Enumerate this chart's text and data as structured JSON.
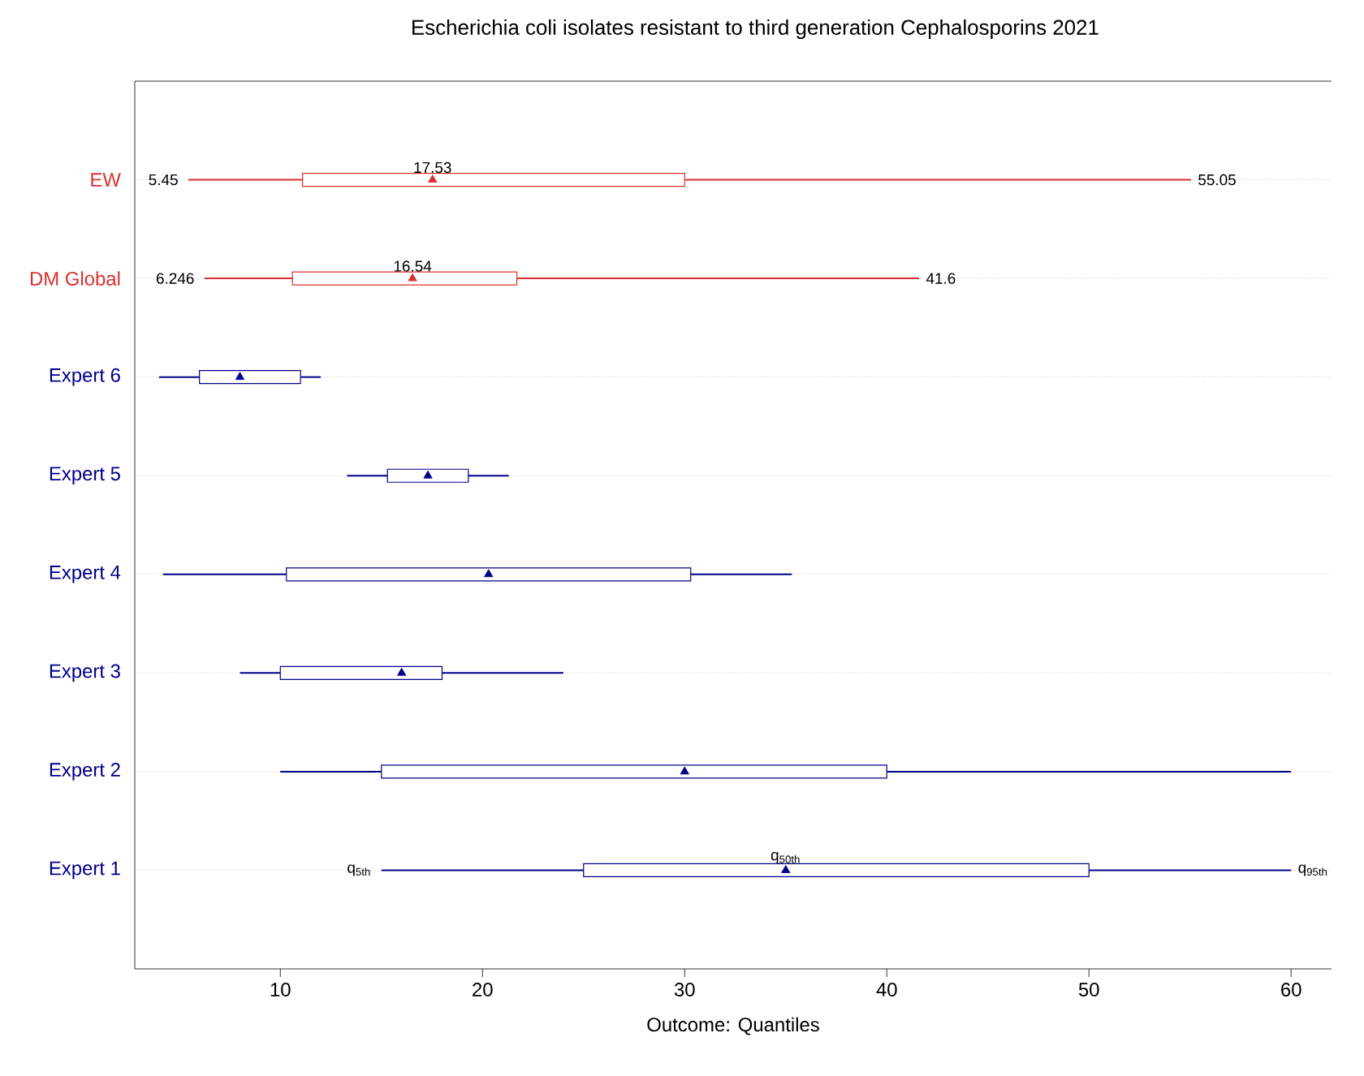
{
  "chart_data": {
    "type": "box",
    "orientation": "horizontal",
    "title": "Escherichia coli isolates resistant to third generation Cephalosporins 2021",
    "xlabel": "Outcome: Quantiles",
    "categories": [
      "EW",
      "DM Global",
      "Expert 6",
      "Expert 5",
      "Expert 4",
      "Expert 3",
      "Expert 2",
      "Expert 1"
    ],
    "colors": [
      "#dc2f2f",
      "#dc2f2f",
      "#00008b",
      "#00008b",
      "#00008b",
      "#00008b",
      "#00008b",
      "#00008b"
    ],
    "boxes": [
      {
        "low": 5.45,
        "q1": 11.1,
        "median": 17.53,
        "q3": 30.0,
        "high": 55.05
      },
      {
        "low": 6.246,
        "q1": 10.6,
        "median": 16.54,
        "q3": 21.7,
        "high": 41.6
      },
      {
        "low": 4.0,
        "q1": 6.0,
        "median": 8.0,
        "q3": 11.0,
        "high": 12.0
      },
      {
        "low": 13.3,
        "q1": 15.3,
        "median": 17.3,
        "q3": 19.3,
        "high": 21.3
      },
      {
        "low": 4.2,
        "q1": 10.3,
        "median": 20.3,
        "q3": 30.3,
        "high": 35.3
      },
      {
        "low": 8.0,
        "q1": 10.0,
        "median": 16.0,
        "q3": 18.0,
        "high": 24.0
      },
      {
        "low": 10.0,
        "q1": 15.0,
        "median": 30.0,
        "q3": 40.0,
        "high": 60.0
      },
      {
        "low": 15.0,
        "q1": 25.0,
        "median": 35.0,
        "q3": 50.0,
        "high": 60.0
      }
    ],
    "xlim": [
      2.8,
      62
    ],
    "xticks": [
      10,
      20,
      30,
      40,
      50,
      60
    ],
    "grid": "y",
    "annotations": [
      "5.45",
      "17.53",
      "55.05",
      "6.246",
      "16.54",
      "41.6",
      "q$_{5th}$",
      "q$_{50th}$",
      "q$_{95th}$"
    ]
  }
}
